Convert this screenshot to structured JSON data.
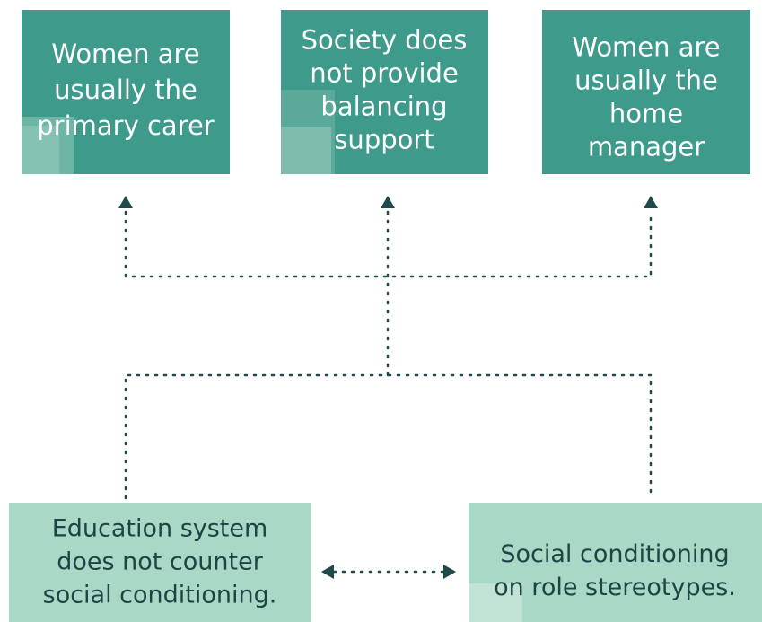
{
  "nodes": [
    {
      "lines": [
        "Women are",
        "usually the",
        "primary carer"
      ]
    },
    {
      "lines": [
        "Society does",
        "not provide",
        "balancing",
        "support"
      ]
    },
    {
      "lines": [
        "Women are",
        "usually the",
        "home",
        "manager"
      ]
    },
    {
      "lines": [
        "Education system",
        "does not counter",
        "social conditioning."
      ]
    },
    {
      "lines": [
        "Social conditioning",
        "on role stereotypes."
      ]
    }
  ]
}
